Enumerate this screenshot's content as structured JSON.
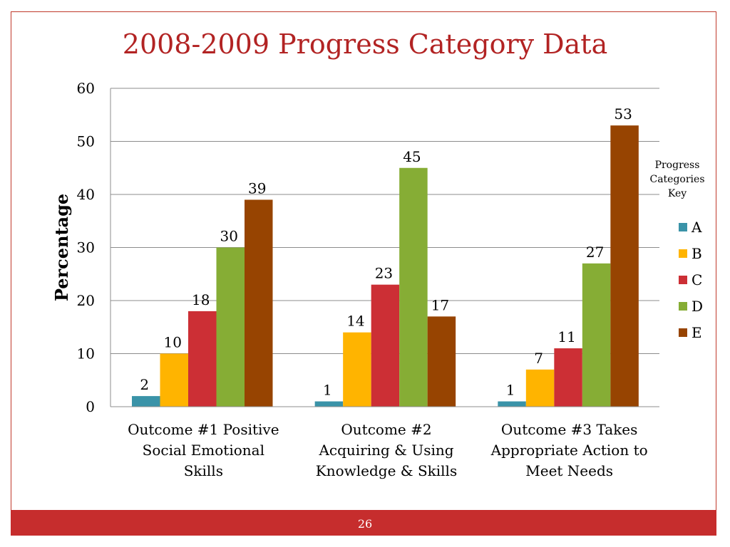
{
  "slide": {
    "title": "2008-2009 Progress Category Data",
    "page_number": "26",
    "accent_color": "#c62d2d"
  },
  "chart_data": {
    "type": "bar",
    "title": "2008-2009 Progress Category Data",
    "ylabel": "Percentage",
    "xlabel": "",
    "ylim": [
      0,
      60
    ],
    "yticks": [
      0,
      10,
      20,
      30,
      40,
      50,
      60
    ],
    "grid": true,
    "legend_placement": "right",
    "legend_title": "Progress Categories Key",
    "categories": [
      "Outcome #1 Positive Social Emotional Skills",
      "Outcome #2 Acquiring & Using Knowledge & Skills",
      "Outcome #3 Takes Appropriate Action to Meet Needs"
    ],
    "category_lines": [
      [
        "Outcome #1 Positive",
        "Social Emotional",
        "Skills"
      ],
      [
        "Outcome #2",
        "Acquiring & Using",
        "Knowledge & Skills"
      ],
      [
        "Outcome #3 Takes",
        "Appropriate Action to",
        "Meet Needs"
      ]
    ],
    "series": [
      {
        "name": "A",
        "color": "#3a93a8",
        "values": [
          2,
          1,
          1
        ]
      },
      {
        "name": "B",
        "color": "#ffb400",
        "values": [
          10,
          14,
          7
        ]
      },
      {
        "name": "C",
        "color": "#cc2f35",
        "values": [
          18,
          23,
          11
        ]
      },
      {
        "name": "D",
        "color": "#86ad35",
        "values": [
          30,
          45,
          27
        ]
      },
      {
        "name": "E",
        "color": "#974401",
        "values": [
          39,
          17,
          53
        ]
      }
    ]
  }
}
